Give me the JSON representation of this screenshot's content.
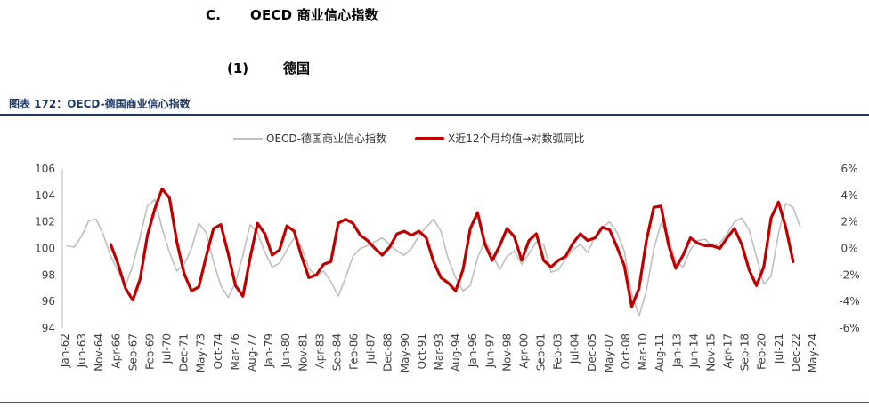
{
  "section": {
    "number": "C.",
    "title": "OECD 商业信心指数"
  },
  "subsection": {
    "number": "(1)",
    "title": "德国"
  },
  "figure_title": "图表 172：OECD-德国商业信心指数",
  "colors": {
    "series1": "#bfbfbf",
    "series2": "#c00000",
    "axis_text": "#404040"
  },
  "chart_data": {
    "type": "line",
    "title": "",
    "x_labels": [
      "Jan-62",
      "Jun-63",
      "Nov-64",
      "Apr-66",
      "Sep-67",
      "Feb-69",
      "Jul-70",
      "Dec-71",
      "May-73",
      "Oct-74",
      "Mar-76",
      "Aug-77",
      "Jan-79",
      "Jun-80",
      "Nov-81",
      "Apr-83",
      "Sep-84",
      "Feb-86",
      "Jul-87",
      "Dec-88",
      "May-90",
      "Oct-91",
      "Mar-93",
      "Aug-94",
      "Jan-96",
      "Jun-97",
      "Nov-98",
      "Apr-00",
      "Sep-01",
      "Feb-03",
      "Jul-04",
      "Dec-05",
      "May-07",
      "Oct-08",
      "Mar-10",
      "Aug-11",
      "Jan-13",
      "Jun-14",
      "Nov-15",
      "Apr-17",
      "Sep-18",
      "Feb-20",
      "Jul-21",
      "Dec-22",
      "May-24"
    ],
    "y_left": {
      "min": 94,
      "max": 106,
      "ticks": [
        "94",
        "96",
        "98",
        "100",
        "102",
        "104",
        "106"
      ]
    },
    "y_right": {
      "min": -6,
      "max": 6,
      "ticks": [
        "-6%",
        "-4%",
        "-2%",
        "0%",
        "2%",
        "4%",
        "6%"
      ]
    },
    "legend_position": "top",
    "series": [
      {
        "name": "OECD-德国商业信心指数",
        "axis": "left",
        "values": [
          100.2,
          100.1,
          100.9,
          102.1,
          102.2,
          101.0,
          99.4,
          98.3,
          97.2,
          98.7,
          100.9,
          103.2,
          103.7,
          101.5,
          99.7,
          98.3,
          98.8,
          100.0,
          101.9,
          101.2,
          99.0,
          97.2,
          96.3,
          97.4,
          99.5,
          101.8,
          101.2,
          99.7,
          98.6,
          98.9,
          99.9,
          100.8,
          100.1,
          98.5,
          97.9,
          98.3,
          97.5,
          96.4,
          97.8,
          99.4,
          100.0,
          100.2,
          100.5,
          100.8,
          100.3,
          99.8,
          99.5,
          100.0,
          101.0,
          101.6,
          102.2,
          101.3,
          99.2,
          97.8,
          96.8,
          97.2,
          99.3,
          100.6,
          99.6,
          98.4,
          99.4,
          99.8,
          98.8,
          99.6,
          100.5,
          100.3,
          98.2,
          98.4,
          99.2,
          99.9,
          100.3,
          99.7,
          100.9,
          101.6,
          102.0,
          101.2,
          99.8,
          96.6,
          94.9,
          96.8,
          99.9,
          101.9,
          100.9,
          99.0,
          98.6,
          99.9,
          100.6,
          100.7,
          100.1,
          100.4,
          101.1,
          102.0,
          102.3,
          101.4,
          99.4,
          97.3,
          97.9,
          101.1,
          103.4,
          103.1,
          101.6
        ]
      },
      {
        "name": "X近12个月均值→对数弧同比",
        "axis": "right",
        "values": [
          null,
          null,
          null,
          null,
          null,
          null,
          0.3,
          -1.2,
          -3.0,
          -3.9,
          -2.3,
          1.0,
          3.0,
          4.5,
          3.8,
          0.5,
          -1.9,
          -3.2,
          -2.9,
          -0.6,
          1.5,
          1.8,
          -0.4,
          -2.8,
          -3.6,
          -0.7,
          1.9,
          1.1,
          -0.5,
          -0.1,
          1.7,
          1.3,
          -0.6,
          -2.2,
          -2.0,
          -1.2,
          -1.0,
          1.9,
          2.2,
          1.9,
          1.0,
          0.6,
          0.0,
          -0.5,
          0.1,
          1.1,
          1.3,
          1.0,
          1.3,
          0.8,
          -1.0,
          -2.2,
          -2.6,
          -3.2,
          -1.6,
          1.5,
          2.7,
          0.3,
          -0.9,
          0.2,
          1.5,
          0.9,
          -0.9,
          0.6,
          1.1,
          -0.9,
          -1.4,
          -0.9,
          -0.6,
          0.4,
          1.1,
          0.6,
          0.8,
          1.6,
          1.4,
          0.1,
          -1.3,
          -4.4,
          -3.0,
          0.6,
          3.1,
          3.2,
          0.3,
          -1.5,
          -0.5,
          0.8,
          0.4,
          0.2,
          0.2,
          0.0,
          0.8,
          1.5,
          0.3,
          -1.6,
          -2.8,
          -1.4,
          2.3,
          3.5,
          1.6,
          -1.0
        ]
      }
    ]
  }
}
